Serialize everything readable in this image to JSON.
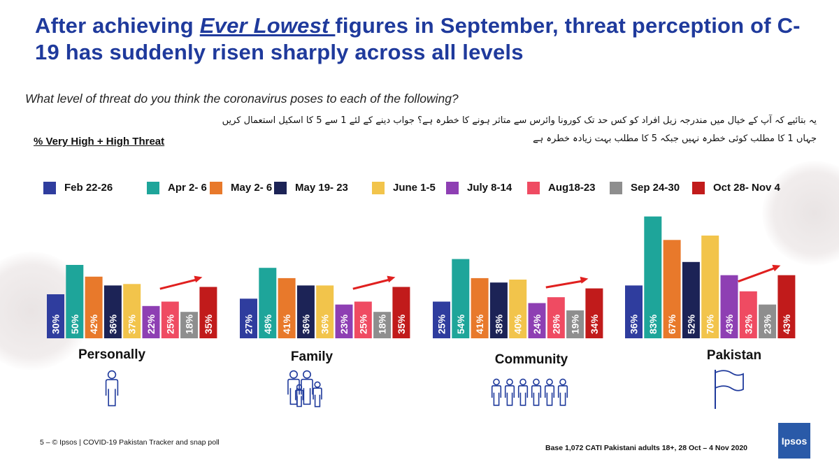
{
  "title": {
    "part1": "After achieving ",
    "emphasis": "Ever Lowest ",
    "part2": "figures in September, threat perception of C-19 has suddenly risen sharply across all levels"
  },
  "question": "What level of threat do you think the coronavirus poses to each of the following?",
  "question_urdu": "یہ بتائیے کہ آپ کے خیال میں مندرجہ زیل افراد کو کس حد تک کورونا وائرس سے متاثر ہونے کا خطرہ ہے؟ جواب دینے کے لئے 1 سے 5 کا اسکیل استعمال کریں جہاں 1 کا مطلب کوئی خطرہ نہیں جبکہ 5 کا مطلب بہت زیادہ خطرہ ہے",
  "metric_label": "% Very High + High Threat",
  "footer": {
    "left": "5 – © Ipsos | COVID-19 Pakistan Tracker and snap poll",
    "right": "Base 1,072 CATI Pakistani adults 18+, 28 Oct – 4 Nov 2020",
    "logo": "Ipsos"
  },
  "chart_data": {
    "type": "bar",
    "categories": [
      "Personally",
      "Family",
      "Community",
      "Pakistan"
    ],
    "series": [
      {
        "name": "Feb 22-26",
        "color": "#2f3d9e",
        "values": [
          30,
          27,
          25,
          36
        ]
      },
      {
        "name": "Apr 2- 6",
        "color": "#1ea59a",
        "values": [
          50,
          48,
          54,
          83
        ]
      },
      {
        "name": "May 2- 6",
        "color": "#e8792b",
        "values": [
          42,
          41,
          41,
          67
        ]
      },
      {
        "name": "May 19- 23",
        "color": "#1c2356",
        "values": [
          36,
          36,
          38,
          52
        ]
      },
      {
        "name": "June 1-5",
        "color": "#f2c44b",
        "values": [
          37,
          36,
          40,
          70
        ]
      },
      {
        "name": "July 8-14",
        "color": "#8e3fb3",
        "values": [
          22,
          23,
          24,
          43
        ]
      },
      {
        "name": "Aug18-23",
        "color": "#ef4b62",
        "values": [
          25,
          25,
          28,
          32
        ]
      },
      {
        "name": "Sep 24-30",
        "color": "#8e8e8e",
        "values": [
          18,
          18,
          19,
          23
        ]
      },
      {
        "name": "Oct 28- Nov 4",
        "color": "#c11b1b",
        "values": [
          35,
          35,
          34,
          43
        ]
      }
    ],
    "value_suffix": "%",
    "trend_arrow_color": "#e0201f",
    "icons": [
      "person-icon",
      "family-icon",
      "community-icon",
      "flag-icon"
    ]
  }
}
